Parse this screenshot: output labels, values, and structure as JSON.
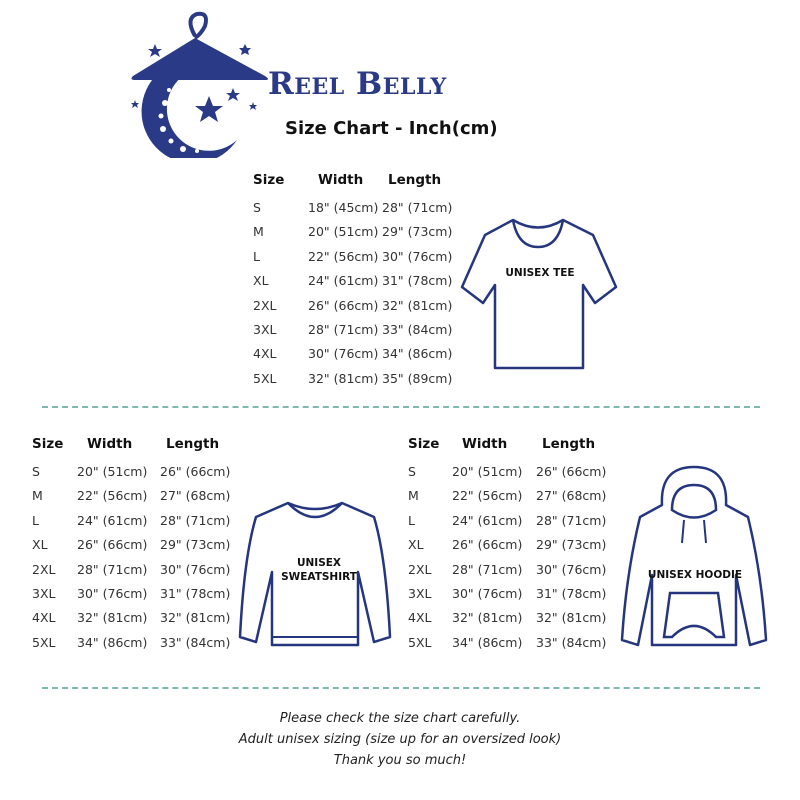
{
  "brand": {
    "name": "Reel Belly",
    "color": "#2a3a86"
  },
  "title": "Size Chart - Inch(cm)",
  "headers": {
    "size": "Size",
    "width": "Width",
    "length": "Length"
  },
  "tables": {
    "tee": {
      "garment_label": "UNISEX TEE",
      "rows": [
        {
          "size": "S",
          "width": "18\" (45cm)",
          "length": "28\" (71cm)"
        },
        {
          "size": "M",
          "width": "20\" (51cm)",
          "length": "29\" (73cm)"
        },
        {
          "size": "L",
          "width": "22\" (56cm)",
          "length": "30\" (76cm)"
        },
        {
          "size": "XL",
          "width": "24\" (61cm)",
          "length": "31\" (78cm)"
        },
        {
          "size": "2XL",
          "width": "26\" (66cm)",
          "length": "32\" (81cm)"
        },
        {
          "size": "3XL",
          "width": "28\" (71cm)",
          "length": "33\" (84cm)"
        },
        {
          "size": "4XL",
          "width": "30\" (76cm)",
          "length": "34\" (86cm)"
        },
        {
          "size": "5XL",
          "width": "32\" (81cm)",
          "length": "35\" (89cm)"
        }
      ]
    },
    "sweatshirt": {
      "garment_label": "UNISEX SWEATSHIRT",
      "rows": [
        {
          "size": "S",
          "width": "20\" (51cm)",
          "length": "26\" (66cm)"
        },
        {
          "size": "M",
          "width": "22\" (56cm)",
          "length": "27\" (68cm)"
        },
        {
          "size": "L",
          "width": "24\" (61cm)",
          "length": "28\" (71cm)"
        },
        {
          "size": "XL",
          "width": "26\" (66cm)",
          "length": "29\" (73cm)"
        },
        {
          "size": "2XL",
          "width": "28\" (71cm)",
          "length": "30\" (76cm)"
        },
        {
          "size": "3XL",
          "width": "30\" (76cm)",
          "length": "31\" (78cm)"
        },
        {
          "size": "4XL",
          "width": "32\" (81cm)",
          "length": "32\" (81cm)"
        },
        {
          "size": "5XL",
          "width": "34\" (86cm)",
          "length": "33\" (84cm)"
        }
      ]
    },
    "hoodie": {
      "garment_label": "UNISEX HOODIE",
      "rows": [
        {
          "size": "S",
          "width": "20\" (51cm)",
          "length": "26\" (66cm)"
        },
        {
          "size": "M",
          "width": "22\" (56cm)",
          "length": "27\" (68cm)"
        },
        {
          "size": "L",
          "width": "24\" (61cm)",
          "length": "28\" (71cm)"
        },
        {
          "size": "XL",
          "width": "26\" (66cm)",
          "length": "29\" (73cm)"
        },
        {
          "size": "2XL",
          "width": "28\" (71cm)",
          "length": "30\" (76cm)"
        },
        {
          "size": "3XL",
          "width": "30\" (76cm)",
          "length": "31\" (78cm)"
        },
        {
          "size": "4XL",
          "width": "32\" (81cm)",
          "length": "32\" (81cm)"
        },
        {
          "size": "5XL",
          "width": "34\" (86cm)",
          "length": "33\" (84cm)"
        }
      ]
    }
  },
  "footer": {
    "line1": "Please check the size chart carefully.",
    "line2": "Adult unisex sizing (size up for an oversized look)",
    "line3": "Thank you so much!"
  },
  "colors": {
    "navy": "#26367e",
    "divider": "#7fb8ae"
  }
}
